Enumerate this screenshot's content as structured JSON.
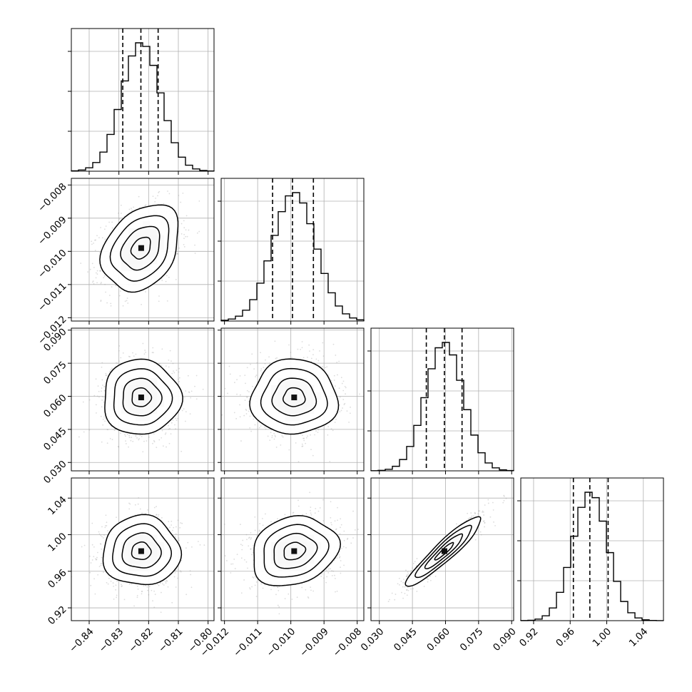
{
  "chart_data": {
    "type": "corner",
    "parameters": [
      {
        "lim": [
          -0.846,
          -0.798
        ],
        "ticks": [
          -0.84,
          -0.83,
          -0.82,
          -0.81,
          -0.8
        ],
        "tick_labels": [
          "−0.84",
          "−0.83",
          "−0.82",
          "−0.81",
          "−0.80"
        ],
        "mean": -0.8225,
        "std": 0.0065,
        "quantiles": [
          -0.8287,
          -0.8226,
          -0.8168
        ]
      },
      {
        "lim": [
          -0.0121,
          -0.0078
        ],
        "ticks": [
          -0.012,
          -0.011,
          -0.01,
          -0.009,
          -0.008
        ],
        "tick_labels": [
          "−0.012",
          "−0.011",
          "−0.010",
          "−0.009",
          "−0.008"
        ],
        "mean": -0.0099,
        "std": 0.00065,
        "quantiles": [
          -0.01055,
          -0.00995,
          -0.00932
        ]
      },
      {
        "lim": [
          0.0262,
          0.0909
        ],
        "ticks": [
          0.03,
          0.045,
          0.06,
          0.075,
          0.09
        ],
        "tick_labels": [
          "0.030",
          "0.045",
          "0.060",
          "0.075",
          "0.090"
        ],
        "mean": 0.0595,
        "std": 0.0085,
        "quantiles": [
          0.0513,
          0.0595,
          0.0675
        ]
      },
      {
        "lim": [
          0.906,
          1.062
        ],
        "ticks": [
          0.92,
          0.96,
          1.0,
          1.04
        ],
        "tick_labels": [
          "0.92",
          "0.96",
          "1.00",
          "1.04"
        ],
        "mean": 0.982,
        "std": 0.019,
        "quantiles": [
          0.9635,
          0.9815,
          1.0015
        ]
      }
    ],
    "correlations": [
      {
        "pair": [
          0,
          1
        ],
        "rho": 0.3
      },
      {
        "pair": [
          0,
          2
        ],
        "rho": 0.0
      },
      {
        "pair": [
          0,
          3
        ],
        "rho": 0.0
      },
      {
        "pair": [
          1,
          2
        ],
        "rho": 0.0
      },
      {
        "pair": [
          1,
          3
        ],
        "rho": 0.18
      },
      {
        "pair": [
          2,
          3
        ],
        "rho": 0.93
      }
    ],
    "histogram_bins": 20,
    "contour_levels": [
      "0.5 sigma",
      "1 sigma",
      "1.5 sigma",
      "2 sigma"
    ],
    "grid": true,
    "colors": {
      "line": "#000000",
      "grid": "#b0b0b0",
      "points": "#9a9a9a"
    }
  }
}
